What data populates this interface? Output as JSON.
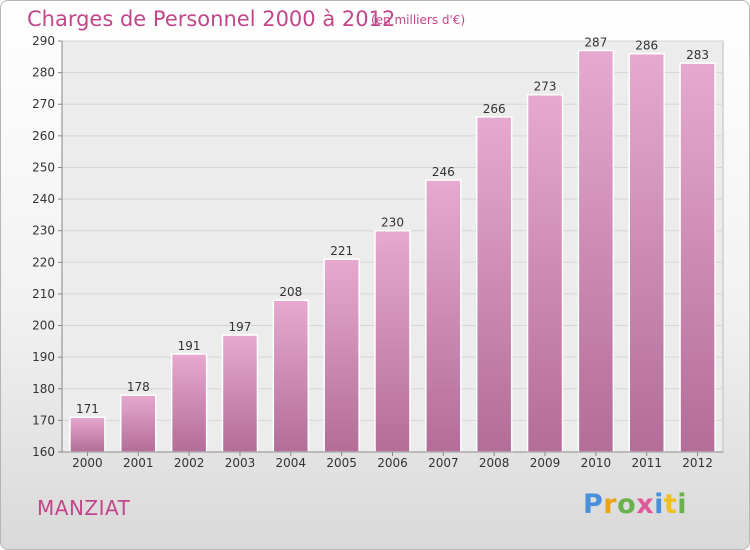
{
  "header": {
    "title": "Charges de Personnel 2000 à 2012",
    "subtitle": "(en milliers d'€)"
  },
  "footer": {
    "city": "MANZIAT",
    "logo": "Proxiti"
  },
  "colors": {
    "title": "#c2478a",
    "bar_top": "#e7a9cf",
    "bar_bottom": "#b36d98",
    "grid": "#d6d6d6",
    "plot_bg": "#ececec"
  },
  "chart_data": {
    "type": "bar",
    "title": "Charges de Personnel 2000 à 2012",
    "subtitle": "(en milliers d'€)",
    "categories": [
      "2000",
      "2001",
      "2002",
      "2003",
      "2004",
      "2005",
      "2006",
      "2007",
      "2008",
      "2009",
      "2010",
      "2011",
      "2012"
    ],
    "values": [
      171,
      178,
      191,
      197,
      208,
      221,
      230,
      246,
      266,
      273,
      287,
      286,
      283
    ],
    "ylim": [
      160,
      290
    ],
    "yticks": [
      160,
      170,
      180,
      190,
      200,
      210,
      220,
      230,
      240,
      250,
      260,
      270,
      280,
      290
    ],
    "grid": true,
    "data_labels": true
  }
}
